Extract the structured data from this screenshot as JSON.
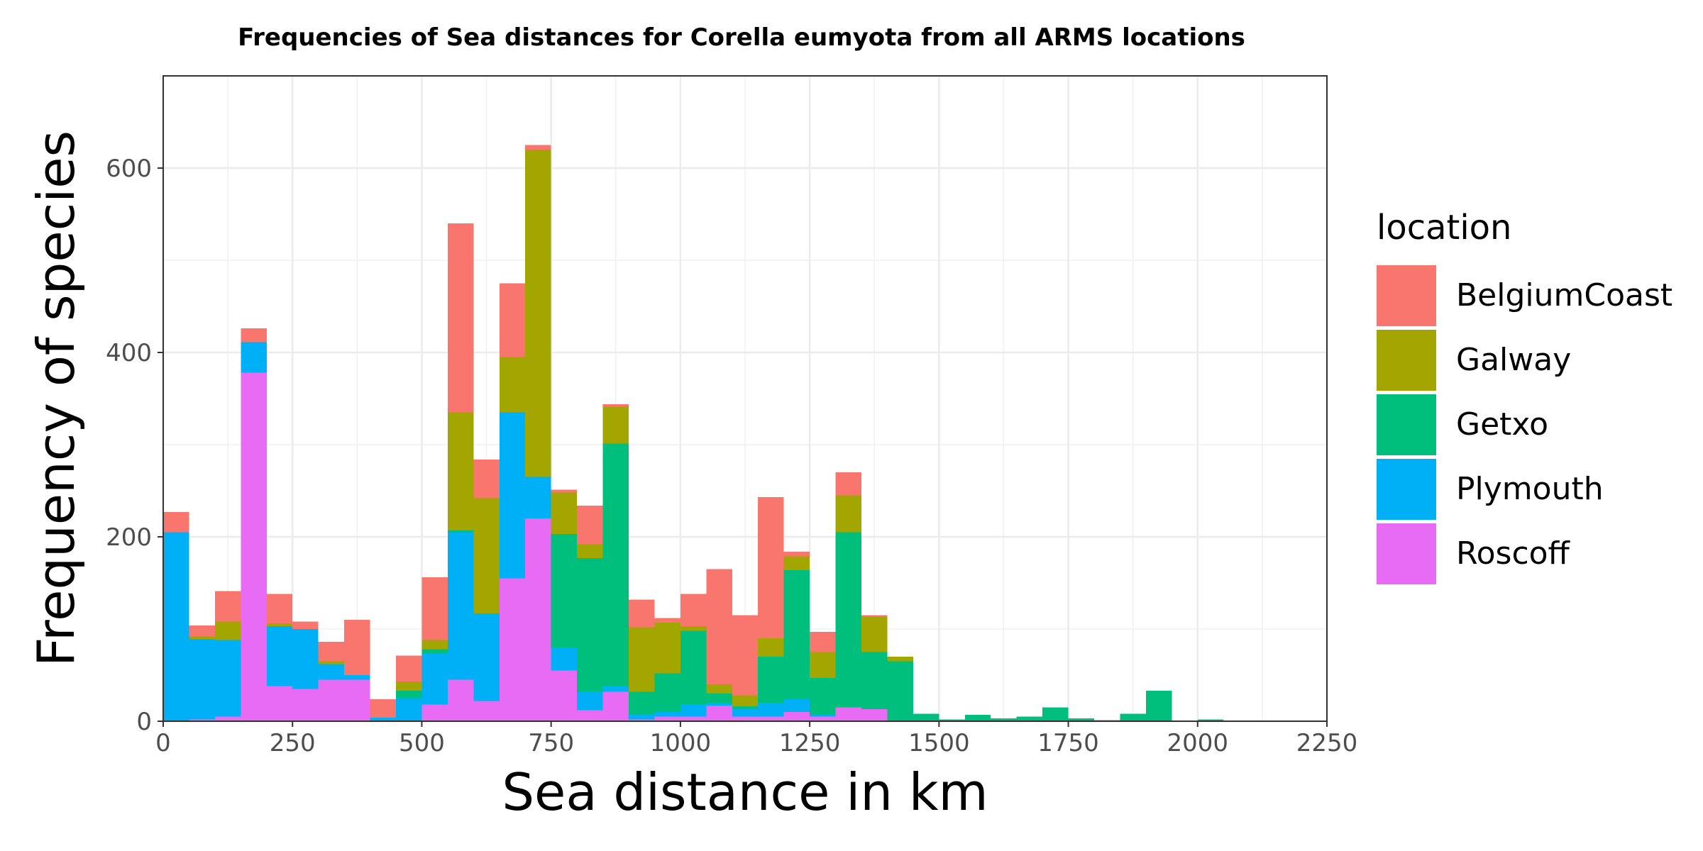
{
  "chart_data": {
    "type": "bar",
    "stacked": true,
    "title": "Frequencies of Sea distances for Corella eumyota from all ARMS locations",
    "xlabel": "Sea distance in km",
    "ylabel": "Frequency of species",
    "xlim": [
      0,
      2250
    ],
    "ylim": [
      0,
      700
    ],
    "xticks": [
      "0",
      "250",
      "500",
      "750",
      "1000",
      "1250",
      "1500",
      "1750",
      "2000",
      "2250"
    ],
    "yticks": [
      "0",
      "200",
      "400",
      "600"
    ],
    "grid": true,
    "bin_width": 50,
    "bin_starts": [
      0,
      50,
      100,
      150,
      200,
      250,
      300,
      350,
      400,
      450,
      500,
      550,
      600,
      650,
      700,
      750,
      800,
      850,
      900,
      950,
      1000,
      1050,
      1100,
      1150,
      1200,
      1250,
      1300,
      1350,
      1400,
      1450,
      1500,
      1550,
      1600,
      1650,
      1700,
      1750,
      1800,
      1850,
      1900,
      1950,
      2000,
      2050,
      2100,
      2150,
      2200
    ],
    "legend": {
      "title": "location",
      "position": "right"
    },
    "series": [
      {
        "name": "BelgiumCoast",
        "color": "#F8766D",
        "values": [
          22,
          12,
          33,
          15,
          32,
          8,
          21,
          60,
          20,
          28,
          68,
          205,
          42,
          80,
          5,
          3,
          42,
          3,
          30,
          5,
          35,
          125,
          87,
          153,
          5,
          22,
          25,
          2,
          0,
          0,
          0,
          0,
          0,
          0,
          0,
          0,
          0,
          0,
          0,
          0,
          0,
          0,
          0,
          0,
          0
        ]
      },
      {
        "name": "Galway",
        "color": "#A3A500",
        "values": [
          0,
          3,
          20,
          0,
          3,
          0,
          3,
          0,
          0,
          10,
          10,
          128,
          125,
          60,
          355,
          45,
          15,
          40,
          70,
          55,
          5,
          10,
          12,
          20,
          15,
          28,
          40,
          38,
          5,
          0,
          0,
          0,
          0,
          0,
          0,
          0,
          0,
          0,
          0,
          0,
          0,
          0,
          0,
          0,
          0
        ]
      },
      {
        "name": "Getxo",
        "color": "#00BF7D",
        "values": [
          0,
          0,
          0,
          0,
          0,
          0,
          0,
          0,
          0,
          8,
          5,
          2,
          0,
          0,
          0,
          123,
          145,
          263,
          25,
          42,
          80,
          10,
          3,
          50,
          140,
          40,
          190,
          62,
          65,
          8,
          2,
          7,
          3,
          5,
          15,
          3,
          1,
          8,
          33,
          0,
          2,
          0,
          0,
          0,
          0
        ]
      },
      {
        "name": "Plymouth",
        "color": "#00B0F6",
        "values": [
          205,
          87,
          83,
          33,
          65,
          65,
          17,
          5,
          4,
          25,
          55,
          160,
          95,
          180,
          45,
          25,
          20,
          6,
          5,
          5,
          13,
          3,
          8,
          15,
          14,
          2,
          0,
          0,
          0,
          0,
          0,
          0,
          0,
          0,
          0,
          0,
          0,
          0,
          0,
          0,
          0,
          0,
          0,
          0,
          0
        ]
      },
      {
        "name": "Roscoff",
        "color": "#E76BF3",
        "values": [
          0,
          2,
          5,
          378,
          38,
          35,
          45,
          45,
          0,
          0,
          18,
          45,
          22,
          155,
          220,
          55,
          12,
          32,
          2,
          5,
          5,
          17,
          5,
          5,
          10,
          5,
          15,
          13,
          0,
          0,
          0,
          0,
          0,
          0,
          0,
          0,
          0,
          0,
          0,
          0,
          0,
          0,
          0,
          0,
          0
        ]
      }
    ]
  }
}
